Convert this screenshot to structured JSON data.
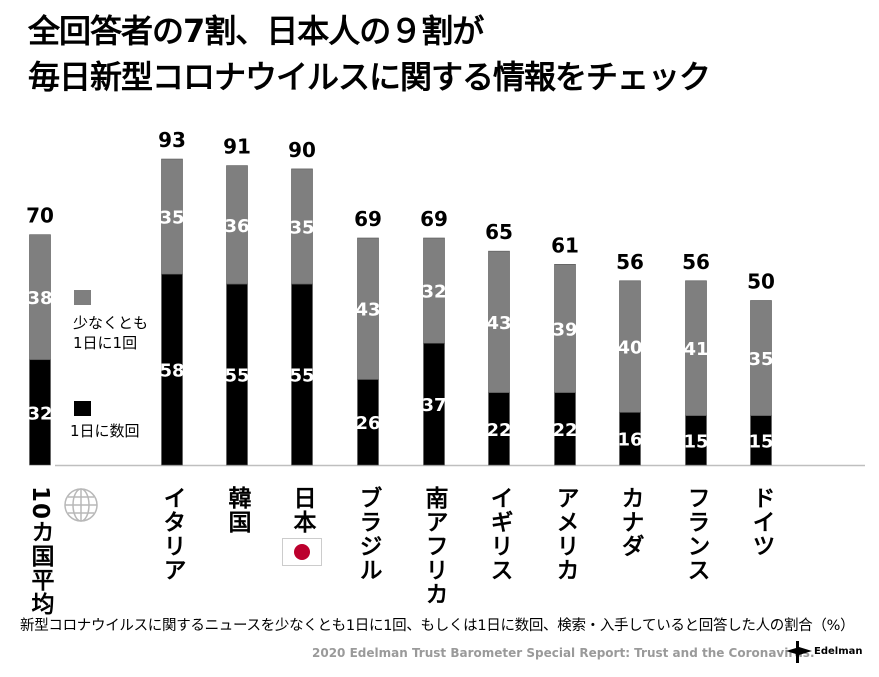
{
  "title": {
    "line1": "全回答者の7割、日本人の９割が",
    "line2": "毎日新型コロナウイルスに関する情報をチェック"
  },
  "chart_data": {
    "type": "bar",
    "stacked": true,
    "categories": [
      "10カ国平均",
      "イタリア",
      "韓国",
      "日本",
      "ブラジル",
      "南アフリカ",
      "イギリス",
      "アメリカ",
      "カナダ",
      "フランス",
      "ドイツ"
    ],
    "series": [
      {
        "name": "1日に数回",
        "color": "#000000",
        "values": [
          32,
          58,
          55,
          55,
          26,
          37,
          22,
          22,
          16,
          15,
          15
        ]
      },
      {
        "name": "少なくとも1日に1回",
        "color": "#7f7f7f",
        "values": [
          38,
          35,
          36,
          35,
          43,
          32,
          43,
          39,
          40,
          41,
          35
        ]
      }
    ],
    "totals": [
      70,
      93,
      91,
      90,
      69,
      69,
      65,
      61,
      56,
      56,
      50
    ],
    "ylim": [
      0,
      100
    ],
    "grid": false,
    "legend_placement": "left"
  },
  "legend": {
    "gray_label_line1": "少なくとも",
    "gray_label_line2": "1日に1回",
    "black_label": "1日に数回"
  },
  "icons": {
    "average": "globe-icon",
    "japan": "japan-flag-icon"
  },
  "footnote": "新型コロナウイルスに関するニュースを少なくとも1日に1回、もしくは1日に数回、検索・入手していると回答した人の割合（%）",
  "source": "2020 Edelman Trust Barometer Special Report: Trust and the Coronavirus.",
  "logo_text": "Edelman"
}
